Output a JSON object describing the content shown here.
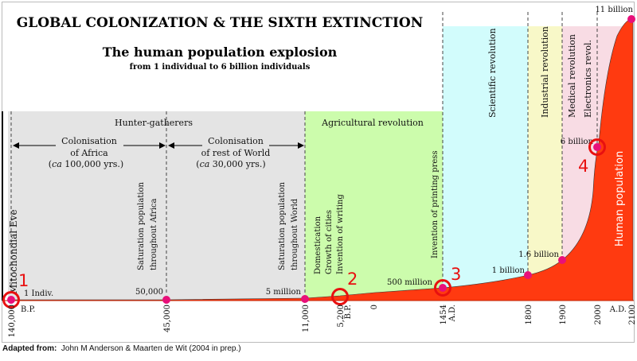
{
  "title": "GLOBAL COLONIZATION & THE SIXTH EXTINCTION",
  "subtitle": "The human population explosion",
  "subsubtitle": "from 1 individual to 6 billion individuals",
  "colors": {
    "hunter": "#e4e4e4",
    "agri": "#ccfcac",
    "sci": "#d2fcfc",
    "ind": "#f8f8c8",
    "med": "#f8dce4",
    "population": "#ff3a10",
    "point": "#e8107a",
    "marker": "#e81010"
  },
  "eras": [
    {
      "label": "Hunter-gatherers"
    },
    {
      "label": "Agricultural revolution"
    },
    {
      "label": "Scientific revolution"
    },
    {
      "label": "Industrial revolution"
    },
    {
      "label": "Medical revolution"
    },
    {
      "label": "Electronics revol."
    }
  ],
  "spans": [
    {
      "line1": "Colonisation",
      "line2": "of Africa",
      "line3_prefix": "ca",
      "line3": " 100,000 yrs.)"
    },
    {
      "line1": "Colonisation",
      "line2": "of rest of World",
      "line3_prefix": "ca",
      "line3": " 30,000 yrs.)"
    }
  ],
  "events": [
    {
      "label": "Mitochondial Eve"
    },
    {
      "label": "Saturation population",
      "label2": "throughout Africa"
    },
    {
      "label": "Saturation population",
      "label2": "throughout World"
    },
    {
      "label": "Domestication",
      "label2": "Growth of cities",
      "label3": "Invention of writing"
    },
    {
      "label": "Invention of printing press"
    }
  ],
  "population_label": "Human population",
  "chart_data": {
    "type": "area",
    "x_ticks": [
      "140,000",
      "45,000",
      "11,000",
      "5,200",
      "0",
      "1454",
      "1800",
      "1900",
      "2000",
      "2100"
    ],
    "era_labels": [
      "B.P.",
      "B.P.",
      "A.D.",
      "A.D."
    ],
    "points": [
      {
        "time": "140,000 B.P.",
        "label": "1 Indiv.",
        "value": 1
      },
      {
        "time": "45,000 B.P.",
        "label": "50,000",
        "value": 50000
      },
      {
        "time": "11,000 B.P.",
        "label": "5 million",
        "value": 5000000
      },
      {
        "time": "1454 A.D.",
        "label": "500 million",
        "value": 500000000
      },
      {
        "time": "1800 A.D.",
        "label": "1 billion",
        "value": 1000000000
      },
      {
        "time": "1900 A.D.",
        "label": "1.6 billion",
        "value": 1600000000
      },
      {
        "time": "2000 A.D.",
        "label": "6 billion",
        "value": 6000000000
      },
      {
        "time": "2100 A.D.",
        "label": "11 billion",
        "value": 11000000000
      }
    ],
    "markers": [
      "1",
      "2",
      "3",
      "4"
    ]
  },
  "footer": {
    "label": "Adapted from:",
    "text": "John M Anderson & Maarten de Wit (2004 in prep.)"
  }
}
